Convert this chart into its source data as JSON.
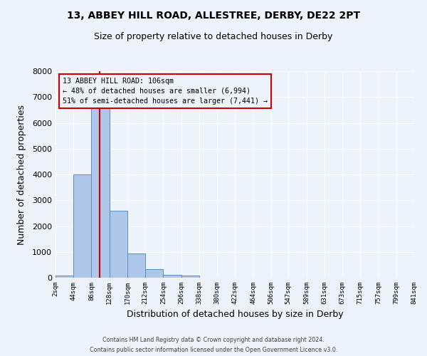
{
  "title": "13, ABBEY HILL ROAD, ALLESTREE, DERBY, DE22 2PT",
  "subtitle": "Size of property relative to detached houses in Derby",
  "xlabel": "Distribution of detached houses by size in Derby",
  "ylabel": "Number of detached properties",
  "bin_edges": [
    2,
    44,
    86,
    128,
    170,
    212,
    254,
    296,
    338,
    380,
    422,
    464,
    506,
    547,
    589,
    631,
    673,
    715,
    757,
    799,
    841
  ],
  "bar_heights": [
    70,
    4000,
    6600,
    2600,
    950,
    330,
    120,
    70,
    0,
    0,
    0,
    0,
    0,
    0,
    0,
    0,
    0,
    0,
    0,
    0
  ],
  "bar_color": "#aec6e8",
  "bar_edge_color": "#5a8fc3",
  "property_line_x": 106,
  "property_line_color": "#cc0000",
  "annotation_text": "13 ABBEY HILL ROAD: 106sqm\n← 48% of detached houses are smaller (6,994)\n51% of semi-detached houses are larger (7,441) →",
  "annotation_box_color": "#cc0000",
  "ylim": [
    0,
    8000
  ],
  "yticks": [
    0,
    1000,
    2000,
    3000,
    4000,
    5000,
    6000,
    7000,
    8000
  ],
  "background_color": "#eef2fa",
  "grid_color": "#ffffff",
  "footer_line1": "Contains HM Land Registry data © Crown copyright and database right 2024.",
  "footer_line2": "Contains public sector information licensed under the Open Government Licence v3.0."
}
